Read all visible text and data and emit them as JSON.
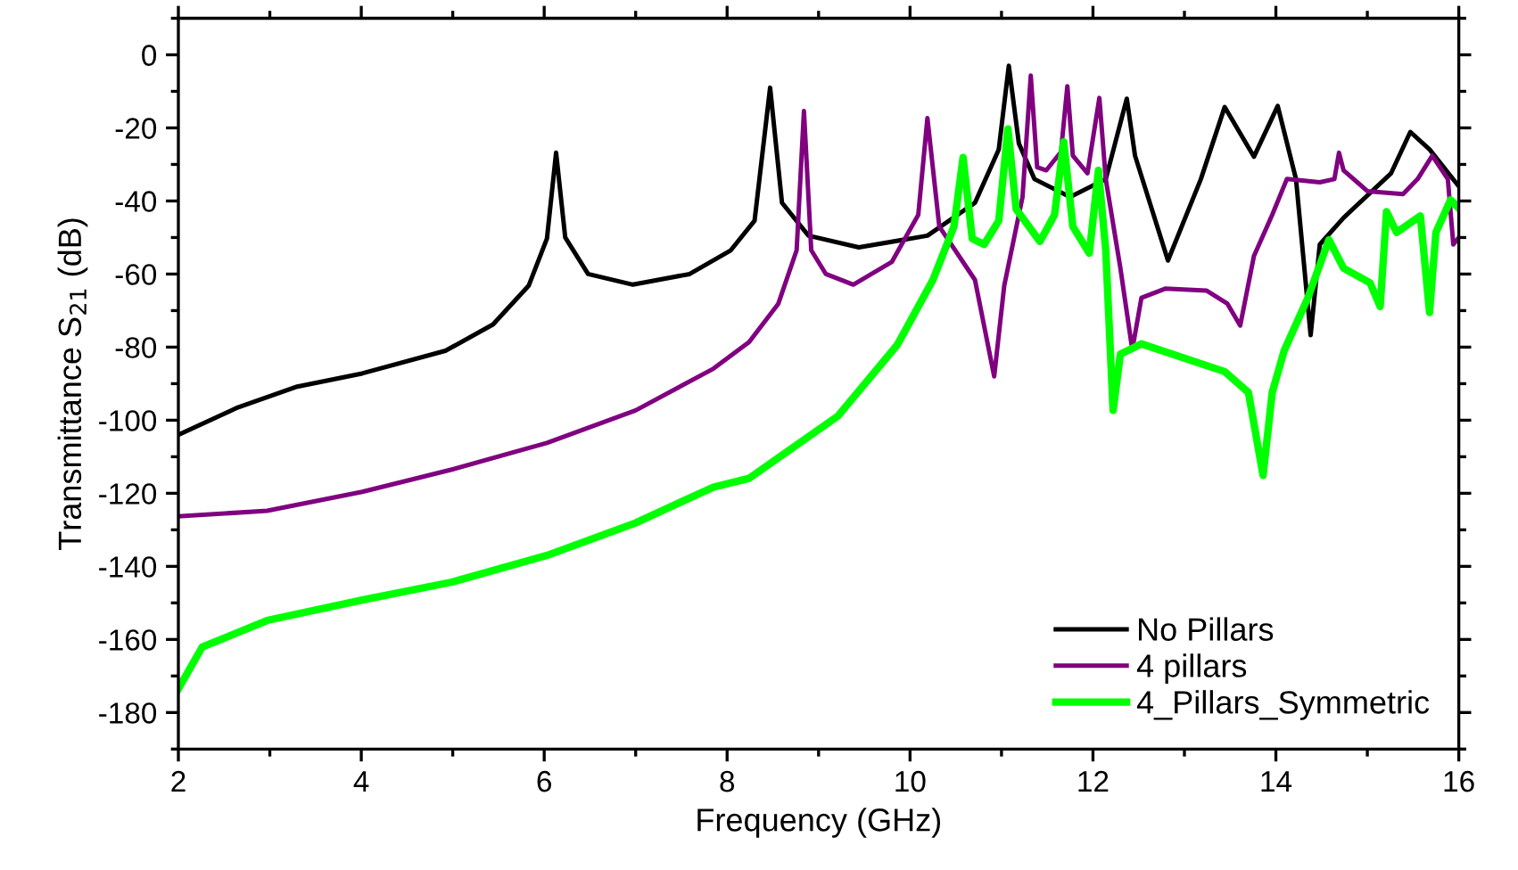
{
  "chart_data": {
    "type": "line",
    "xlabel": "Frequency (GHz)",
    "ylabel": "Transmittance S$_{21}$ (dB)",
    "xlim": [
      2,
      16
    ],
    "xticks": [
      2,
      4,
      6,
      8,
      10,
      12,
      14,
      16
    ],
    "ylim": [
      -190,
      10
    ],
    "yticks": [
      -180,
      -160,
      -140,
      -120,
      -100,
      -80,
      -60,
      -40,
      -20,
      0
    ],
    "grid": false,
    "legend": "bottom right",
    "marker": "none",
    "line_style": "solid",
    "series": [
      {
        "name": "No Pillars",
        "color": "#000000",
        "x": [
          2,
          2.65,
          3.3,
          4.01,
          4.92,
          5.44,
          5.83,
          6.03,
          6.13,
          6.23,
          6.48,
          6.97,
          7.59,
          8.04,
          8.3,
          8.47,
          8.6,
          8.89,
          9.44,
          10.19,
          10.71,
          10.97,
          11.08,
          11.19,
          11.36,
          11.75,
          12.14,
          12.37,
          12.46,
          12.82,
          13.18,
          13.44,
          13.76,
          14.02,
          14.22,
          14.38,
          14.48,
          14.74,
          15.26,
          15.47,
          15.68,
          16
        ],
        "values": [
          -104,
          -96.5,
          -90.8,
          -87.2,
          -81,
          -73.8,
          -63.2,
          -50.3,
          -26.8,
          -50,
          -60,
          -62.9,
          -60,
          -53.5,
          -45.4,
          -9,
          -40.5,
          -49.5,
          -52.7,
          -49.5,
          -40.5,
          -25.9,
          -3,
          -24.3,
          -34,
          -38.9,
          -34,
          -12,
          -27.6,
          -56.3,
          -34,
          -14.3,
          -27.9,
          -14,
          -34,
          -76.7,
          -51.9,
          -44.6,
          -32.4,
          -21.1,
          -25.9,
          -36
        ]
      },
      {
        "name": "4 pillars",
        "color": "#800080",
        "x": [
          2,
          2.97,
          4.01,
          4.99,
          6.03,
          7.0,
          7.85,
          8.24,
          8.56,
          8.76,
          8.84,
          8.92,
          9.08,
          9.38,
          9.8,
          10.09,
          10.19,
          10.32,
          10.71,
          10.92,
          11.03,
          11.23,
          11.32,
          11.39,
          11.49,
          11.65,
          11.72,
          11.78,
          11.94,
          12.07,
          12.14,
          12.3,
          12.43,
          12.53,
          12.79,
          13.24,
          13.47,
          13.61,
          13.76,
          13.96,
          14.12,
          14.48,
          14.64,
          14.69,
          14.74,
          15.0,
          15.39,
          15.55,
          15.71,
          15.88,
          15.94,
          16
        ],
        "values": [
          -126.3,
          -124.8,
          -119.6,
          -113.5,
          -106.2,
          -97.3,
          -85.9,
          -78.6,
          -68.1,
          -53.5,
          -15.4,
          -53.5,
          -60,
          -62.9,
          -56.7,
          -43.8,
          -17.3,
          -47,
          -61.6,
          -88,
          -63.2,
          -38.9,
          -5.7,
          -30.8,
          -31.6,
          -26.6,
          -8.6,
          -27.6,
          -32.4,
          -11.8,
          -34,
          -58.4,
          -80.7,
          -66.5,
          -64,
          -64.5,
          -68.1,
          -74.1,
          -55.1,
          -43.8,
          -34,
          -34.9,
          -34,
          -26.8,
          -31.6,
          -37.3,
          -38.1,
          -34,
          -27.6,
          -34,
          -51.9,
          -50
        ]
      },
      {
        "name": "4_Pillars_Symmetric",
        "color": "#00ff00",
        "x": [
          2,
          2.26,
          2.97,
          4.01,
          4.99,
          6.03,
          7.0,
          7.85,
          8.24,
          9.21,
          9.86,
          10.25,
          10.48,
          10.58,
          10.68,
          10.81,
          10.97,
          11.07,
          11.16,
          11.42,
          11.58,
          11.68,
          11.78,
          11.96,
          12.06,
          12.14,
          12.22,
          12.3,
          12.53,
          13.44,
          13.7,
          13.86,
          13.96,
          14.09,
          14.35,
          14.58,
          14.74,
          15.03,
          15.14,
          15.21,
          15.32,
          15.58,
          15.68,
          15.75,
          15.91,
          16
        ],
        "values": [
          -173.5,
          -162.1,
          -154.8,
          -149.2,
          -144.3,
          -137,
          -128.1,
          -118.3,
          -115.9,
          -98.9,
          -79.4,
          -61.6,
          -47,
          -28.1,
          -50.3,
          -51.9,
          -45.4,
          -20.3,
          -42.2,
          -51.1,
          -43.8,
          -23.8,
          -47,
          -54.3,
          -31.6,
          -53.5,
          -97.3,
          -81.9,
          -79.1,
          -86.7,
          -92.4,
          -115.1,
          -92.4,
          -81,
          -66.5,
          -50.6,
          -58.4,
          -62.4,
          -68.9,
          -42.9,
          -48.6,
          -44.1,
          -70.5,
          -48.6,
          -39.7,
          -42
        ]
      }
    ]
  }
}
